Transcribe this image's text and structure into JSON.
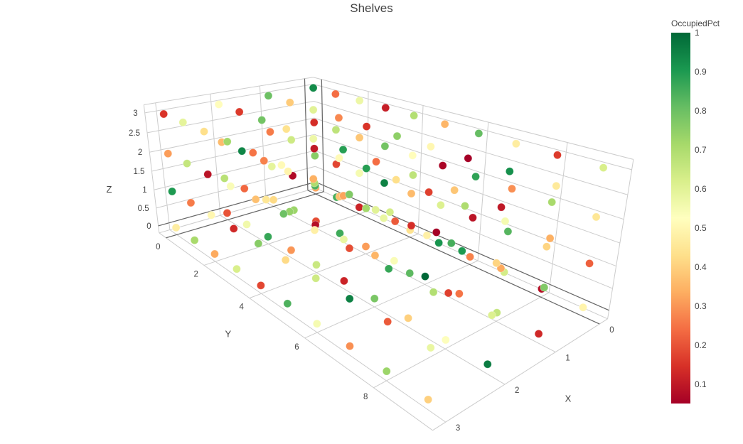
{
  "chart_data": {
    "type": "scatter",
    "subtype": "scatter3d",
    "title": "Shelves",
    "axes": {
      "x": {
        "label": "X",
        "ticks": [
          0,
          1,
          2,
          3
        ],
        "range": [
          -0.2,
          3.2
        ]
      },
      "y": {
        "label": "Y",
        "ticks": [
          0,
          2,
          4,
          6,
          8
        ],
        "range": [
          -0.4,
          9.4
        ]
      },
      "z": {
        "label": "Z",
        "ticks": [
          0,
          0.5,
          1,
          1.5,
          2,
          2.5,
          3
        ],
        "range": [
          -0.2,
          3.2
        ]
      }
    },
    "colorbar": {
      "title": "OccupiedPct",
      "ticks": [
        1,
        0.9,
        0.8,
        0.7,
        0.6,
        0.5,
        0.4,
        0.3,
        0.2,
        0.1
      ]
    },
    "colorscale": [
      [
        0,
        "#a50026"
      ],
      [
        0.1,
        "#d73027"
      ],
      [
        0.2,
        "#f46d43"
      ],
      [
        0.3,
        "#fdae61"
      ],
      [
        0.4,
        "#fee08b"
      ],
      [
        0.5,
        "#ffffbf"
      ],
      [
        0.6,
        "#d9ef8b"
      ],
      [
        0.7,
        "#a6d96a"
      ],
      [
        0.8,
        "#66bd63"
      ],
      [
        0.9,
        "#1a9850"
      ],
      [
        1,
        "#006837"
      ]
    ],
    "points": {
      "x_levels": [
        0,
        1,
        2,
        3
      ],
      "y_levels": [
        0,
        1,
        2,
        3,
        4,
        5,
        6,
        7,
        8,
        9
      ],
      "z_levels": [
        0,
        1,
        2,
        3
      ],
      "occupied_pct": {
        "x0_z0": [
          0.32,
          0.85,
          0.12,
          0.58,
          0.44,
          0.91,
          0.27,
          0.63,
          0.08,
          0.49
        ],
        "x0_z1": [
          0.76,
          0.18,
          0.55,
          0.95,
          0.36,
          0.61,
          0.09,
          0.83,
          0.41,
          0.22
        ],
        "x0_z2": [
          0.14,
          0.67,
          0.38,
          0.79,
          0.52,
          0.06,
          0.88,
          0.29,
          0.71,
          0.45
        ],
        "x0_z3": [
          0.93,
          0.24,
          0.57,
          0.11,
          0.69,
          0.35,
          0.81,
          0.47,
          0.16,
          0.62
        ],
        "x1_z0": [
          0.42,
          0.73,
          0.19,
          0.86,
          0.31,
          0.54,
          1.0,
          0.25,
          0.66,
          0.13
        ],
        "x1_z1": [
          0.59,
          0.07,
          0.84,
          0.37,
          0.72,
          0.21,
          0.48,
          0.9,
          0.33,
          0.77
        ],
        "x1_z2": [
          0.26,
          0.64,
          0.1,
          0.51,
          0.89,
          0.43,
          0.17,
          0.7,
          0.55,
          0.34
        ],
        "x1_z3": [
          0.8,
          0.39,
          0.6,
          0.28,
          0.15,
          0.75,
          0.5,
          0.05,
          0.92,
          0.46
        ],
        "x2_z0": [
          0.2,
          0.56,
          0.87,
          0.3,
          0.65,
          0.12,
          0.78,
          0.4,
          0.53,
          0.96
        ],
        "x2_z1": [
          0.68,
          0.23,
          0.45,
          0.74,
          0.08,
          0.58,
          0.35,
          0.82,
          0.17,
          0.61
        ],
        "x2_z2": [
          0.36,
          0.94,
          0.27,
          0.49,
          0.7,
          0.32,
          0.6,
          0.14,
          0.85,
          0.41
        ],
        "x2_z3": [
          0.52,
          0.16,
          0.79,
          0.44,
          0.57,
          0.89,
          0.24,
          0.67,
          0.38,
          0.1
        ],
        "x3_z0": [
          0.47,
          0.71,
          0.33,
          0.62,
          0.18,
          0.84,
          0.55,
          0.29,
          0.73,
          0.4
        ],
        "x3_z1": [
          0.9,
          0.26,
          0.5,
          0.13,
          0.76,
          0.42,
          0.64,
          0.95,
          0.21,
          0.58
        ],
        "x3_z2": [
          0.31,
          0.66,
          0.09,
          0.54,
          0.37,
          0.8,
          0.48,
          0.19,
          0.87,
          0.69
        ],
        "x3_z3": [
          0.15,
          0.59,
          0.43,
          0.72,
          0.25,
          0.51,
          0.34,
          0.77,
          0.63,
          0.05
        ]
      }
    },
    "style": {
      "grid_color": "#cccccc",
      "zeroline_color": "#666666",
      "tick_color": "#444444",
      "background": "#ffffff"
    }
  }
}
